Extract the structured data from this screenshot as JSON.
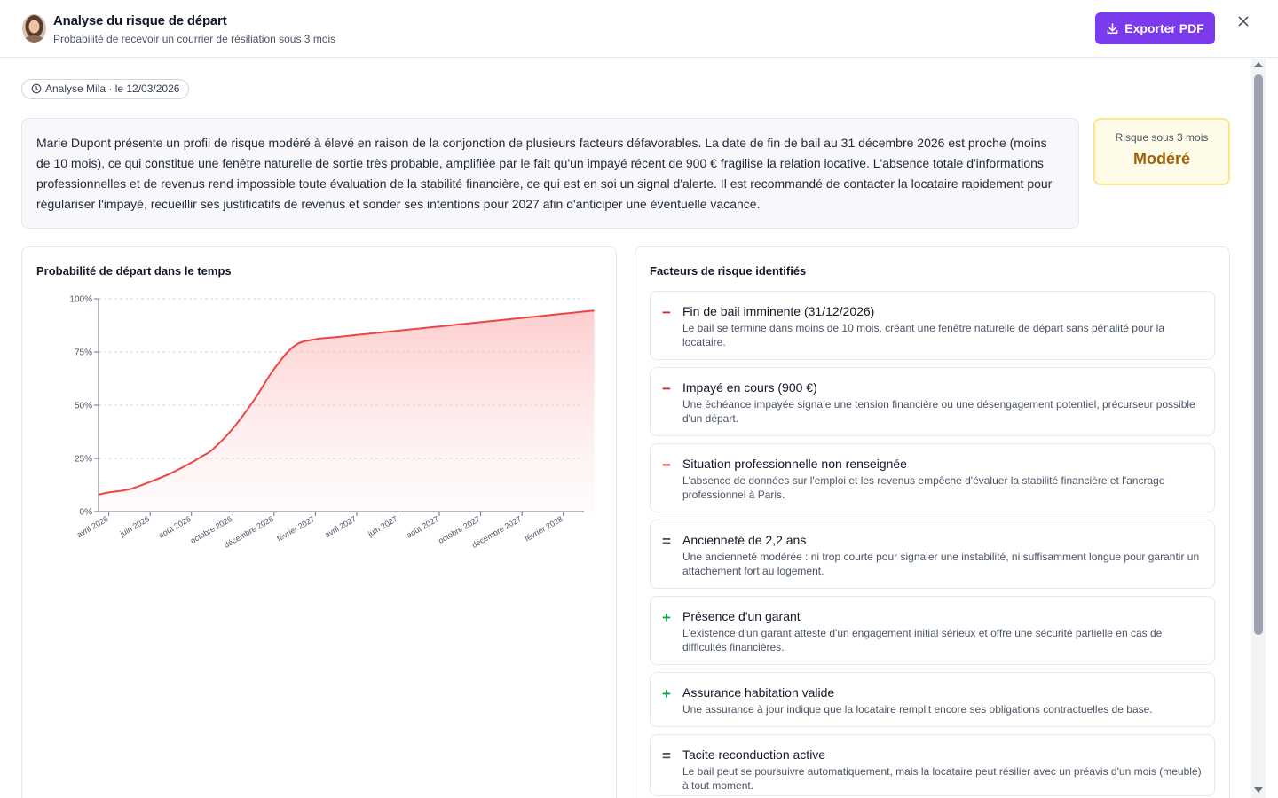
{
  "header": {
    "title": "Analyse du risque de départ",
    "subtitle": "Probabilité de recevoir un courrier de résiliation sous 3 mois",
    "export_label": "Exporter PDF"
  },
  "meta": {
    "chip_label": "Analyse Mila · le 12/03/2026"
  },
  "summary": {
    "text": "Marie Dupont présente un profil de risque modéré à élevé en raison de la conjonction de plusieurs facteurs défavorables. La date de fin de bail au 31 décembre 2026 est proche (moins de 10 mois), ce qui constitue une fenêtre naturelle de sortie très probable, amplifiée par le fait qu'un impayé récent de 900 € fragilise la relation locative. L'absence totale d'informations professionnelles et de revenus rend impossible toute évaluation de la stabilité financière, ce qui est en soi un signal d'alerte. Il est recommandé de contacter la locataire rapidement pour régulariser l'impayé, recueillir ses justificatifs de revenus et sonder ses intentions pour 2027 afin d'anticiper une éventuelle vacance."
  },
  "risk": {
    "label": "Risque sous 3 mois",
    "value": "Modéré"
  },
  "chart_panel": {
    "title": "Probabilité de départ dans le temps"
  },
  "chart_data": {
    "type": "area",
    "title": "Probabilité de départ dans le temps",
    "x_ticks": [
      "avril 2026",
      "juin 2026",
      "août 2026",
      "octobre 2026",
      "décembre 2026",
      "février 2027",
      "avril 2027",
      "juin 2027",
      "août 2027",
      "octobre 2027",
      "décembre 2027",
      "février 2028"
    ],
    "y_ticks": [
      "0%",
      "25%",
      "50%",
      "75%",
      "100%"
    ],
    "ylim": [
      0,
      100
    ],
    "x_months": [
      -0.5,
      0,
      1,
      2,
      3,
      4,
      4.5,
      5,
      6,
      7,
      8,
      9,
      10,
      11,
      12,
      13,
      14,
      15,
      16,
      17,
      18,
      19,
      20,
      21,
      22,
      23,
      23.5
    ],
    "values": [
      8,
      9,
      10.5,
      14,
      18,
      23,
      26,
      29,
      39,
      52,
      67,
      78,
      81,
      82,
      83,
      84,
      85,
      86,
      87,
      88,
      89,
      90,
      91,
      92,
      93,
      94,
      94.5
    ],
    "grid": true,
    "line_color": "#ef4444",
    "fill_color": "#fecaca"
  },
  "factors_panel": {
    "title": "Facteurs de risque identifiés",
    "items": [
      {
        "sign": "−",
        "kind": "negative",
        "title": "Fin de bail imminente (31/12/2026)",
        "desc": "Le bail se termine dans moins de 10 mois, créant une fenêtre naturelle de départ sans pénalité pour la locataire."
      },
      {
        "sign": "−",
        "kind": "negative",
        "title": "Impayé en cours (900 €)",
        "desc": "Une échéance impayée signale une tension financière ou une désengagement potentiel, précurseur possible d'un départ."
      },
      {
        "sign": "−",
        "kind": "negative",
        "title": "Situation professionnelle non renseignée",
        "desc": "L'absence de données sur l'emploi et les revenus empêche d'évaluer la stabilité financière et l'ancrage professionnel à Paris."
      },
      {
        "sign": "=",
        "kind": "neutral",
        "title": "Ancienneté de 2,2 ans",
        "desc": "Une ancienneté modérée : ni trop courte pour signaler une instabilité, ni suffisamment longue pour garantir un attachement fort au logement."
      },
      {
        "sign": "+",
        "kind": "positive",
        "title": "Présence d'un garant",
        "desc": "L'existence d'un garant atteste d'un engagement initial sérieux et offre une sécurité partielle en cas de difficultés financières."
      },
      {
        "sign": "+",
        "kind": "positive",
        "title": "Assurance habitation valide",
        "desc": "Une assurance à jour indique que la locataire remplit encore ses obligations contractuelles de base."
      },
      {
        "sign": "=",
        "kind": "neutral",
        "title": "Tacite reconduction active",
        "desc": "Le bail peut se poursuivre automatiquement, mais la locataire peut résilier avec un préavis d'un mois (meublé) à tout moment."
      }
    ]
  },
  "colors": {
    "accent": "#7c3aed",
    "negative": "#dc2626",
    "neutral": "#4b5563",
    "positive": "#16a34a",
    "risk_text": "#a16207"
  },
  "icons": {
    "close": "close-icon",
    "export": "download-icon",
    "chip": "clock-icon"
  }
}
